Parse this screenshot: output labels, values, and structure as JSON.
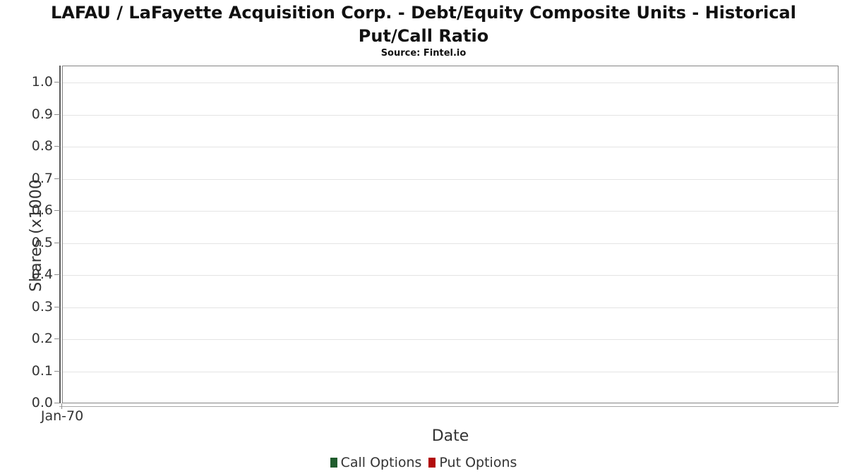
{
  "chart_data": {
    "type": "line",
    "title": "LAFAU / LaFayette Acquisition Corp. - Debt/Equity Composite Units - Historical\nPut/Call Ratio",
    "subtitle": "Source: Fintel.io",
    "xlabel": "Date",
    "ylabel": "Shares (x1000",
    "x_ticks": [
      "Jan-70"
    ],
    "y_ticks": [
      0.0,
      0.1,
      0.2,
      0.3,
      0.4,
      0.5,
      0.6,
      0.7,
      0.8,
      0.9,
      1.0
    ],
    "ylim": [
      0,
      1.05
    ],
    "grid": true,
    "legend_position": "bottom",
    "legend": [
      {
        "label": "Call Options",
        "color": "#1f5c2d"
      },
      {
        "label": "Put Options",
        "color": "#b20b0b"
      }
    ],
    "series": [
      {
        "name": "Call Options",
        "color": "#1f5c2d",
        "x": [],
        "values": []
      },
      {
        "name": "Put Options",
        "color": "#b20b0b",
        "x": [],
        "values": []
      }
    ]
  }
}
